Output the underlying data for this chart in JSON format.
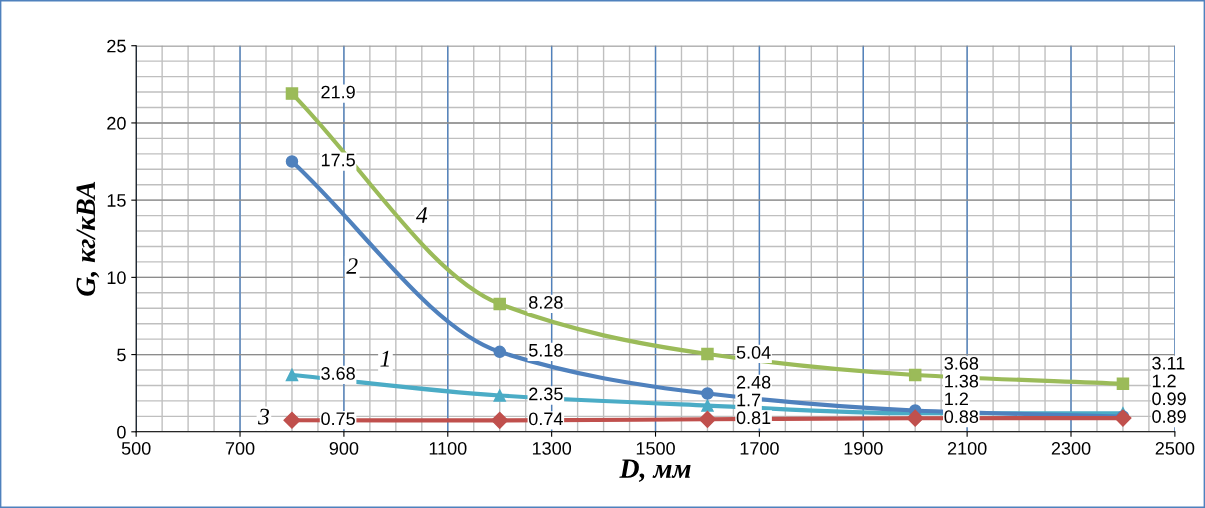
{
  "chart_data": {
    "type": "line",
    "x": [
      800,
      1200,
      1600,
      2000,
      2400
    ],
    "series": [
      {
        "color": "#4bacc6",
        "marker": "triangle",
        "values": [
          3.68,
          2.35,
          1.7,
          1.2,
          1.2
        ]
      },
      {
        "color": "#4f81bd",
        "marker": "circle",
        "values": [
          17.5,
          5.18,
          2.48,
          1.38,
          0.99
        ]
      },
      {
        "color": "#c0504d",
        "marker": "diamond",
        "values": [
          0.75,
          0.74,
          0.81,
          0.88,
          0.89
        ]
      },
      {
        "color": "#9bbb59",
        "marker": "square",
        "values": [
          21.9,
          8.28,
          5.04,
          3.68,
          3.11
        ]
      }
    ],
    "xlabel": "D, мм",
    "ylabel": "G, кг/кВА",
    "xlim": [
      500,
      2500
    ],
    "xticks": [
      500,
      700,
      900,
      1100,
      1300,
      1500,
      1700,
      1900,
      2100,
      2300,
      2500
    ],
    "ylim": [
      0,
      25
    ],
    "yticks": [
      0,
      5,
      10,
      15,
      20,
      25
    ],
    "grid": true,
    "data_labels": true,
    "line_style": "solid",
    "annotations": [
      {
        "text": "1",
        "x": 980,
        "y": 4.6
      },
      {
        "text": "2",
        "x": 916,
        "y": 10.6
      },
      {
        "text": "3",
        "x": 746,
        "y": 0.85
      },
      {
        "text": "4",
        "x": 1050,
        "y": 13.9
      }
    ]
  }
}
